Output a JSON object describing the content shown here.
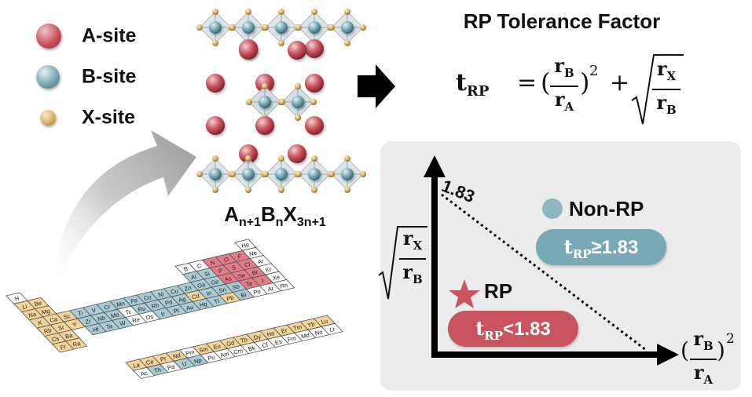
{
  "legend": [
    {
      "label": "A-site",
      "color": "#c9545f"
    },
    {
      "label": "B-site",
      "color": "#79a9b6"
    },
    {
      "label": "X-site",
      "color": "#d9b36a"
    }
  ],
  "structure": {
    "formula_parts": [
      "A",
      "n+1",
      "B",
      "n",
      "X",
      "3n+1"
    ]
  },
  "title": "RP Tolerance Factor",
  "equation": {
    "lhs": "t",
    "lhs_sub": "RP",
    "equals": "=",
    "r": "r",
    "sub_b": "B",
    "sub_a": "A",
    "sub_x": "X",
    "power": "2",
    "plus": "+"
  },
  "plot": {
    "boundary_value": "1.83",
    "non_rp_label": "Non-RP",
    "non_rp_condition": "≥1.83",
    "rp_label": "RP",
    "rp_condition": "<1.83",
    "t_symbol": "t",
    "t_sub": "RP",
    "colors": {
      "non_rp": "#79a9b6",
      "rp": "#c9545f",
      "panel": "#ececec"
    }
  },
  "periodic_table": {
    "main_rows": [
      [
        "H",
        "",
        "",
        "",
        "",
        "",
        "",
        "",
        "",
        "",
        "",
        "",
        "",
        "",
        "",
        "",
        "",
        "He"
      ],
      [
        "Li",
        "Be",
        "",
        "",
        "",
        "",
        "",
        "",
        "",
        "",
        "",
        "",
        "B",
        "C",
        "N",
        "O",
        "F",
        "Ne"
      ],
      [
        "Na",
        "Mg",
        "",
        "",
        "",
        "",
        "",
        "",
        "",
        "",
        "",
        "",
        "Al",
        "Si",
        "P",
        "S",
        "Cl",
        "Ar"
      ],
      [
        "K",
        "Ca",
        "Sc",
        "Ti",
        "V",
        "Cr",
        "Mn",
        "Fe",
        "Co",
        "Ni",
        "Cu",
        "Zn",
        "Ga",
        "Ge",
        "As",
        "Se",
        "Br",
        "Kr"
      ],
      [
        "Rb",
        "Sr",
        "Y",
        "Zr",
        "Nb",
        "Mo",
        "Tc",
        "Ru",
        "Rh",
        "Pd",
        "Ag",
        "Cd",
        "In",
        "Sn",
        "Sb",
        "Te",
        "I",
        "Xe"
      ],
      [
        "Cs",
        "Ba",
        "",
        "Hf",
        "Ta",
        "W",
        "Re",
        "Os",
        "Ir",
        "Pt",
        "Au",
        "Hg",
        "Tl",
        "Pb",
        "Bi",
        "Po",
        "At",
        "Rn"
      ],
      [
        "Fr",
        "Ra",
        "",
        "",
        "",
        "",
        "",
        "",
        "",
        "",
        "",
        "",
        "",
        "",
        "",
        "",
        "",
        ""
      ]
    ],
    "f_rows": [
      [
        "La",
        "Ce",
        "Pr",
        "Nd",
        "Pm",
        "Sm",
        "Eu",
        "Gd",
        "Tb",
        "Dy",
        "Ho",
        "Er",
        "Tm",
        "Yb",
        "Lu"
      ],
      [
        "Ac",
        "Th",
        "Pa",
        "U",
        "Np",
        "Pu",
        "Am",
        "Cm",
        "Bk",
        "Cf",
        "Es",
        "Fm",
        "Md",
        "No",
        "Lr"
      ]
    ],
    "a_site": [
      "Li",
      "Be",
      "Na",
      "Mg",
      "K",
      "Ca",
      "Sr",
      "Y",
      "Ba",
      "Rb",
      "Cs",
      "Fr",
      "Ra",
      "Sc",
      "La",
      "Ce",
      "Pr",
      "Nd",
      "Sm",
      "Eu",
      "Gd",
      "Tb",
      "Dy",
      "Ho",
      "Er",
      "Tm",
      "Yb",
      "Lu",
      "Cd",
      "Pb"
    ],
    "b_site": [
      "Ti",
      "V",
      "Cr",
      "Mn",
      "Fe",
      "Co",
      "Ni",
      "Cu",
      "Zn",
      "Ga",
      "Ge",
      "Al",
      "Si",
      "Zr",
      "Nb",
      "Mo",
      "Ru",
      "Rh",
      "Pd",
      "Ag",
      "In",
      "Sn",
      "Sb",
      "Hf",
      "Ta",
      "W",
      "Ir",
      "Pt",
      "Au",
      "Hg",
      "Tl",
      "Bi",
      "Th",
      "U",
      "Np"
    ],
    "x_site": [
      "O",
      "F",
      "Cl",
      "Br",
      "I",
      "S",
      "Se",
      "Te",
      "N",
      "P",
      "As"
    ]
  }
}
